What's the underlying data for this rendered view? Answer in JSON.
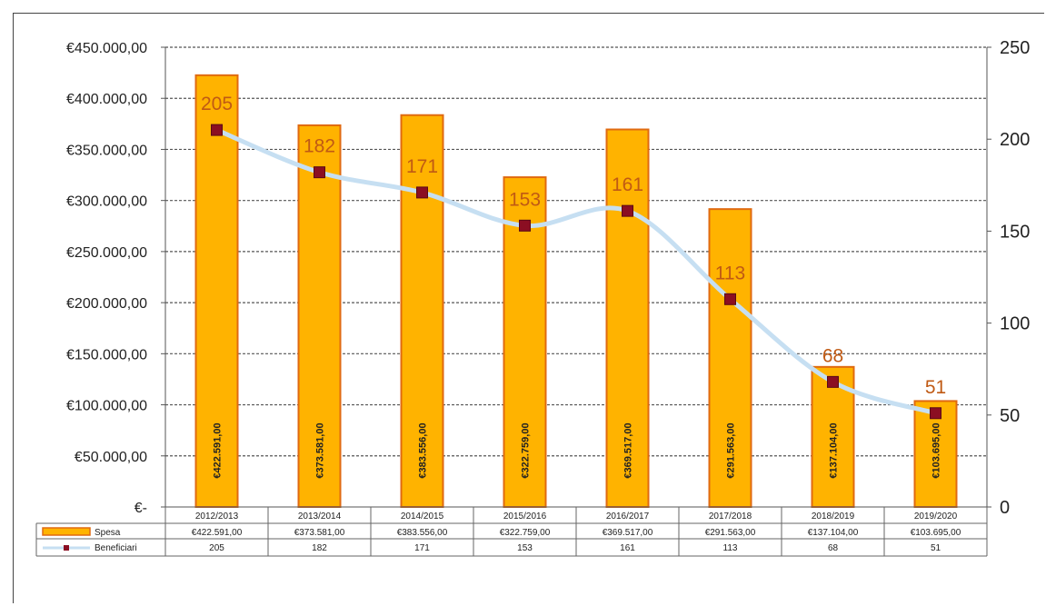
{
  "chart_data": {
    "type": "bar",
    "categories": [
      "2012/2013",
      "2013/2014",
      "2014/2015",
      "2015/2016",
      "2016/2017",
      "2017/2018",
      "2018/2019",
      "2019/2020"
    ],
    "series": [
      {
        "name": "Spesa",
        "type": "bar",
        "axis": "left",
        "values": [
          422591.0,
          373581.0,
          383556.0,
          322759.0,
          369517.0,
          291563.0,
          137104.0,
          103695.0
        ],
        "labels": [
          "€422.591,00",
          "€373.581,00",
          "€383.556,00",
          "€322.759,00",
          "€369.517,00",
          "€291.563,00",
          "€137.104,00",
          "€103.695,00"
        ],
        "table_labels": [
          "€422.591,00",
          "€373.581,00",
          "€383.556,00",
          "€322.759,00",
          "€369.517,00",
          "€291.563,00",
          "€137.104,00",
          "€103.695,00"
        ],
        "color": "#ffb300",
        "border": "#e06a10"
      },
      {
        "name": "Beneficiari",
        "type": "line",
        "axis": "right",
        "values": [
          205,
          182,
          171,
          153,
          161,
          113,
          68,
          51
        ],
        "labels": [
          "205",
          "182",
          "171",
          "153",
          "161",
          "113",
          "68",
          "51"
        ],
        "table_labels": [
          "205",
          "182",
          "171",
          "153",
          "161",
          "113",
          "68",
          "51"
        ],
        "line_color": "#c6dff2",
        "marker_color": "#8b0e22",
        "label_color": "#c05a14"
      }
    ],
    "y_left": {
      "ylim": [
        0,
        450000
      ],
      "ticks": [
        0,
        50000,
        100000,
        150000,
        200000,
        250000,
        300000,
        350000,
        400000,
        450000
      ],
      "tick_labels": [
        "€-",
        "€50.000,00",
        "€100.000,00",
        "€150.000,00",
        "€200.000,00",
        "€250.000,00",
        "€300.000,00",
        "€350.000,00",
        "€400.000,00",
        "€450.000,00"
      ]
    },
    "y_right": {
      "ylim": [
        0,
        250
      ],
      "ticks": [
        0,
        50,
        100,
        150,
        200,
        250
      ],
      "tick_labels": [
        "0",
        "50",
        "100",
        "150",
        "200",
        "250"
      ]
    },
    "grid": true,
    "legend": "data table below chart"
  }
}
